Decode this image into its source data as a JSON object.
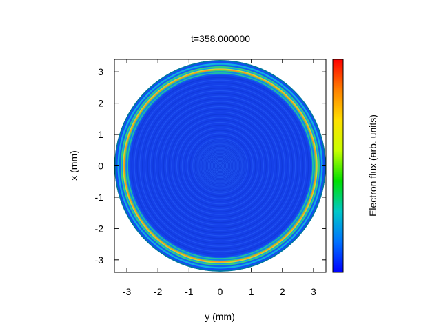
{
  "chart_data": {
    "type": "heatmap",
    "title": "t=358.000000",
    "xlabel": "y (mm)",
    "ylabel": "x (mm)",
    "colorbar_label": "Electron flux (arb. units)",
    "xlim": [
      -3.4,
      3.4
    ],
    "ylim": [
      -3.4,
      3.4
    ],
    "xticks": [
      -3,
      -2,
      -1,
      0,
      1,
      2,
      3
    ],
    "yticks": [
      -3,
      -2,
      -1,
      0,
      1,
      2,
      3
    ],
    "grid": false,
    "colormap": [
      "#0000ff",
      "#0072ff",
      "#00c8c8",
      "#00e000",
      "#c8ff00",
      "#ffe000",
      "#ff8000",
      "#ff0000"
    ],
    "background_color": "#1540e8",
    "disk_radius_mm": 3.4,
    "rings": [
      {
        "r": 3.4,
        "color": "#0078a0"
      },
      {
        "r": 3.36,
        "color": "#1050f0"
      },
      {
        "r": 3.3,
        "color": "#10b0e0"
      },
      {
        "r": 3.25,
        "color": "#1060f0"
      },
      {
        "r": 3.2,
        "color": "#30d080"
      },
      {
        "r": 3.16,
        "color": "#0fa0e8"
      },
      {
        "r": 3.13,
        "color": "#c8e030"
      },
      {
        "r": 3.1,
        "color": "#ff9020"
      },
      {
        "r": 3.07,
        "color": "#40d070"
      },
      {
        "r": 3.04,
        "color": "#1080f0"
      },
      {
        "r": 3.0,
        "color": "#20c0a0"
      },
      {
        "r": 2.96,
        "color": "#1060f0"
      }
    ]
  }
}
